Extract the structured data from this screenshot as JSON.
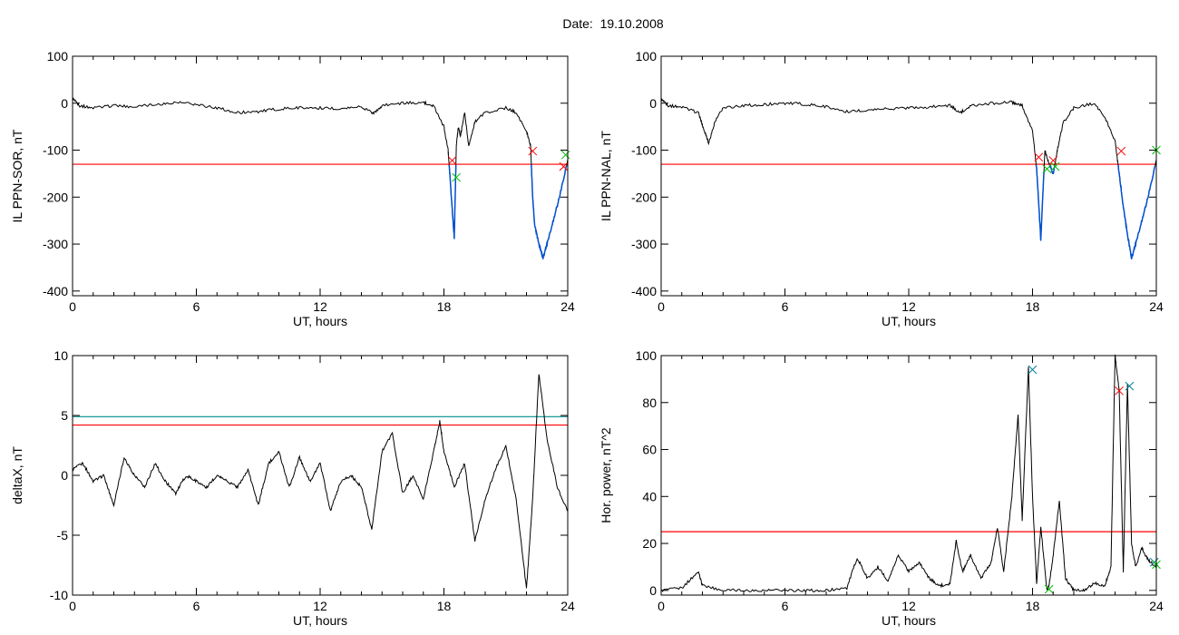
{
  "page_title": "Date:  19.10.2008",
  "colors": {
    "threshold": "#ff0000",
    "threshold2": "#008b8b",
    "trace": "#000000",
    "below": "#0050d0",
    "markA": "#ff0000",
    "markB": "#00c000",
    "markC": "#0080a0"
  },
  "chart_data": [
    {
      "type": "line",
      "ylabel": "IL PPN-SOR, nT",
      "xlabel": "UT, hours",
      "xlim": [
        0,
        24
      ],
      "ylim": [
        -410,
        100
      ],
      "xticks": [
        0,
        6,
        12,
        18,
        24
      ],
      "yticks": [
        100,
        0,
        -100,
        -200,
        -300,
        -400
      ],
      "threshold": -130,
      "series": [
        {
          "x": [
            0,
            0.3,
            1,
            2,
            3,
            4,
            5,
            6,
            7,
            8,
            9,
            10,
            11,
            12,
            13,
            14,
            14.6,
            15,
            16,
            17,
            17.5,
            18,
            18.2,
            18.3,
            18.5,
            18.6,
            18.7,
            18.8,
            19,
            19.2,
            19.5,
            20,
            21,
            21.5,
            22,
            22.2,
            22.3,
            22.4,
            22.6,
            22.8,
            23,
            23.3,
            23.6,
            24
          ],
          "y": [
            10,
            -5,
            -10,
            -5,
            -8,
            -3,
            2,
            -3,
            -10,
            -20,
            -18,
            -12,
            -10,
            -10,
            -12,
            -8,
            -22,
            -5,
            0,
            2,
            -5,
            -50,
            -100,
            -160,
            -290,
            -90,
            -50,
            -70,
            -20,
            -90,
            -40,
            -20,
            -10,
            -20,
            -60,
            -90,
            -200,
            -260,
            -300,
            -330,
            -300,
            -250,
            -200,
            -120
          ]
        }
      ],
      "markers": [
        {
          "x": 18.4,
          "y": -122,
          "kind": "A"
        },
        {
          "x": 18.6,
          "y": -158,
          "kind": "B"
        },
        {
          "x": 22.3,
          "y": -102,
          "kind": "A"
        },
        {
          "x": 23.8,
          "y": -135,
          "kind": "A"
        },
        {
          "x": 23.9,
          "y": -110,
          "kind": "B"
        }
      ]
    },
    {
      "type": "line",
      "ylabel": "IL PPN-NAL, nT",
      "xlabel": "UT, hours",
      "xlim": [
        0,
        24
      ],
      "ylim": [
        -410,
        100
      ],
      "xticks": [
        0,
        6,
        12,
        18,
        24
      ],
      "yticks": [
        100,
        0,
        -100,
        -200,
        -300,
        -400
      ],
      "threshold": -130,
      "series": [
        {
          "x": [
            0,
            0.3,
            1,
            1.8,
            2.1,
            2.3,
            2.6,
            3,
            4,
            5,
            6,
            7,
            8,
            9,
            10,
            11,
            12,
            13,
            14,
            14.5,
            15,
            16,
            17,
            17.5,
            18,
            18.2,
            18.4,
            18.6,
            18.8,
            19,
            19.2,
            19.5,
            20,
            21,
            21.5,
            22,
            22.2,
            22.4,
            22.6,
            22.8,
            23,
            23.3,
            23.6,
            24
          ],
          "y": [
            8,
            -5,
            -8,
            -20,
            -60,
            -85,
            -40,
            -10,
            -5,
            -3,
            0,
            -2,
            -8,
            -18,
            -15,
            -12,
            -10,
            -8,
            -5,
            -20,
            -5,
            0,
            2,
            -5,
            -60,
            -140,
            -290,
            -100,
            -130,
            -150,
            -100,
            -40,
            -10,
            0,
            -30,
            -80,
            -150,
            -220,
            -280,
            -330,
            -300,
            -250,
            -200,
            -120
          ]
        }
      ],
      "markers": [
        {
          "x": 18.3,
          "y": -115,
          "kind": "A"
        },
        {
          "x": 18.7,
          "y": -140,
          "kind": "B"
        },
        {
          "x": 19.0,
          "y": -122,
          "kind": "A"
        },
        {
          "x": 19.1,
          "y": -135,
          "kind": "B"
        },
        {
          "x": 22.3,
          "y": -102,
          "kind": "A"
        },
        {
          "x": 24.0,
          "y": -100,
          "kind": "B"
        }
      ]
    },
    {
      "type": "line",
      "ylabel": "deltaX, nT",
      "xlabel": "UT, hours",
      "xlim": [
        0,
        24
      ],
      "ylim": [
        -10,
        10
      ],
      "xticks": [
        0,
        6,
        12,
        18,
        24
      ],
      "yticks": [
        10,
        5,
        0,
        -5,
        -10
      ],
      "threshold": 4.2,
      "threshold2": 4.9,
      "series": [
        {
          "x": [
            0,
            0.5,
            1,
            1.5,
            2,
            2.5,
            3,
            3.5,
            4,
            4.5,
            5,
            5.5,
            6,
            6.5,
            7,
            7.5,
            8,
            8.5,
            9,
            9.5,
            10,
            10.5,
            11,
            11.5,
            12,
            12.5,
            13,
            13.5,
            14,
            14.5,
            15,
            15.5,
            16,
            16.5,
            17,
            17.5,
            17.8,
            18,
            18.5,
            19,
            19.5,
            20,
            20.5,
            21,
            21.5,
            22,
            22.3,
            22.6,
            23,
            23.5,
            24
          ],
          "y": [
            0.5,
            1,
            -0.5,
            0,
            -2.5,
            1.5,
            0,
            -1,
            1,
            -0.5,
            -1.5,
            0,
            -0.5,
            -1,
            0,
            -0.5,
            -1,
            0.5,
            -2.5,
            1,
            2,
            -1,
            1.5,
            -0.5,
            1,
            -3,
            -0.5,
            0,
            -1,
            -4.5,
            2,
            3.5,
            -1.5,
            0,
            -2,
            2,
            4.5,
            2,
            -1,
            1,
            -5.5,
            -2,
            0.5,
            2.5,
            -2,
            -9.5,
            -2,
            8.5,
            3,
            -1,
            -3
          ]
        }
      ]
    },
    {
      "type": "line",
      "ylabel": "Hor. power, nT^2",
      "xlabel": "UT, hours",
      "xlim": [
        0,
        24
      ],
      "ylim": [
        -2,
        100
      ],
      "xticks": [
        0,
        6,
        12,
        18,
        24
      ],
      "yticks": [
        100,
        80,
        60,
        40,
        20,
        0
      ],
      "threshold": 25,
      "series": [
        {
          "x": [
            0,
            1,
            1.8,
            2,
            3,
            4,
            5,
            6,
            7,
            8,
            9,
            9.5,
            10,
            10.5,
            11,
            11.5,
            12,
            12.5,
            13,
            13.5,
            14,
            14.3,
            14.6,
            15,
            15.5,
            16,
            16.3,
            16.6,
            17,
            17.3,
            17.5,
            17.8,
            18,
            18.2,
            18.4,
            18.7,
            18.8,
            19,
            19.3,
            19.6,
            20,
            20.5,
            21,
            21.5,
            21.8,
            22,
            22.2,
            22.4,
            22.6,
            22.8,
            23,
            23.3,
            23.6,
            24
          ],
          "y": [
            0,
            1,
            8,
            2,
            0,
            0,
            0,
            0,
            0,
            0,
            1,
            14,
            5,
            10,
            4,
            15,
            8,
            12,
            5,
            2,
            3,
            21,
            8,
            15,
            5,
            12,
            27,
            8,
            40,
            75,
            30,
            95,
            40,
            3,
            27,
            0,
            2,
            15,
            38,
            5,
            0,
            0,
            3,
            2,
            10,
            100,
            85,
            8,
            88,
            20,
            10,
            18,
            13,
            10
          ]
        }
      ],
      "markers": [
        {
          "x": 18.0,
          "y": 94,
          "kind": "C"
        },
        {
          "x": 18.8,
          "y": 0.5,
          "kind": "B"
        },
        {
          "x": 22.2,
          "y": 85,
          "kind": "A"
        },
        {
          "x": 22.7,
          "y": 87,
          "kind": "C"
        },
        {
          "x": 23.9,
          "y": 12,
          "kind": "C"
        },
        {
          "x": 24.0,
          "y": 11,
          "kind": "B"
        }
      ]
    }
  ]
}
